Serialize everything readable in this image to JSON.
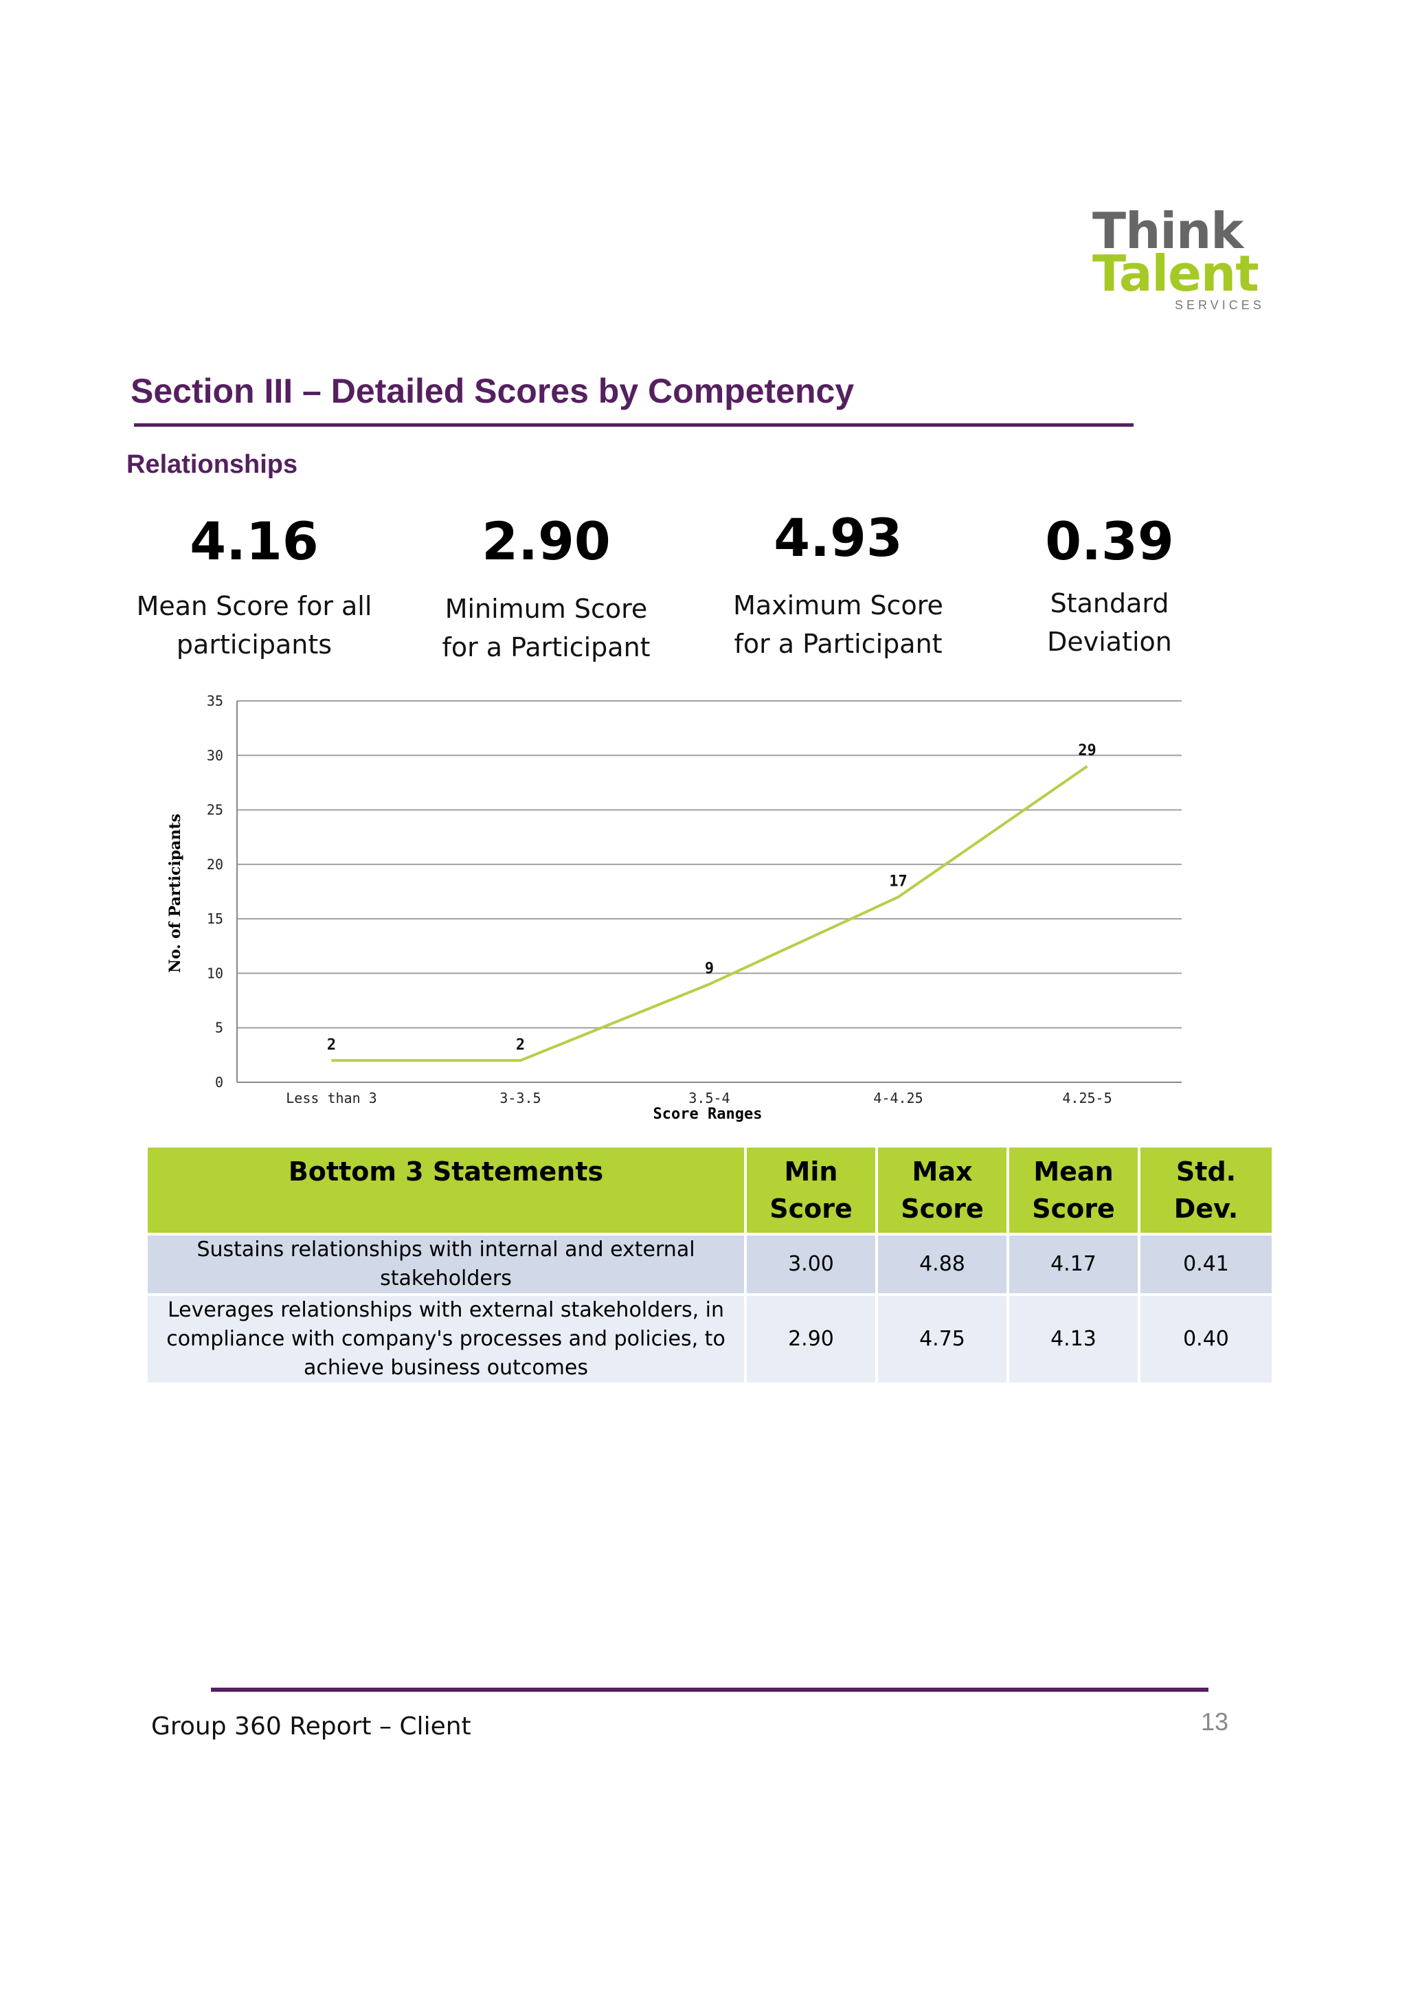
{
  "logo": {
    "line1": "Think",
    "line2": "Talent",
    "line3": "SERVICES"
  },
  "section_title": "Section III – Detailed Scores by Competency",
  "subsection": "Relationships",
  "stats": [
    {
      "value": "4.16",
      "label_lines": [
        "Mean Score for all",
        "participants"
      ]
    },
    {
      "value": "2.90",
      "label_lines": [
        "Minimum Score",
        "for a Participant"
      ]
    },
    {
      "value": "4.93",
      "label_lines": [
        "Maximum Score",
        "for a Participant"
      ]
    },
    {
      "value": "0.39",
      "label_lines": [
        "Standard",
        "Deviation"
      ]
    }
  ],
  "chart_data": {
    "type": "line",
    "categories": [
      "Less than 3",
      "3-3.5",
      "3.5-4",
      "4-4.25",
      "4.25-5"
    ],
    "values": [
      2,
      2,
      9,
      17,
      29
    ],
    "xlabel": "Score Ranges",
    "ylabel": "No. of Participants",
    "ylim": [
      0,
      35
    ],
    "yticks": [
      0,
      5,
      10,
      15,
      20,
      25,
      30,
      35
    ],
    "grid": true,
    "data_labels": true,
    "line_color": "#b5cf4a"
  },
  "table": {
    "headers": [
      [
        "Bottom 3 Statements"
      ],
      [
        "Min",
        "Score"
      ],
      [
        "Max",
        "Score"
      ],
      [
        "Mean",
        "Score"
      ],
      [
        "Std.",
        "Dev."
      ]
    ],
    "rows": [
      {
        "statement_lines": [
          "Sustains relationships with internal and external",
          "stakeholders"
        ],
        "min": "3.00",
        "max": "4.88",
        "mean": "4.17",
        "sd": "0.41"
      },
      {
        "statement_lines": [
          "Leverages relationships with external stakeholders, in",
          "compliance with company's processes and policies, to",
          "achieve business outcomes"
        ],
        "min": "2.90",
        "max": "4.75",
        "mean": "4.13",
        "sd": "0.40"
      }
    ]
  },
  "footer": {
    "text": "Group 360 Report – Client",
    "page_number": "13"
  },
  "colors": {
    "purple": "#55205f",
    "green": "#b2d235",
    "row_a": "#d1d9e8",
    "row_b": "#e9edf5"
  }
}
